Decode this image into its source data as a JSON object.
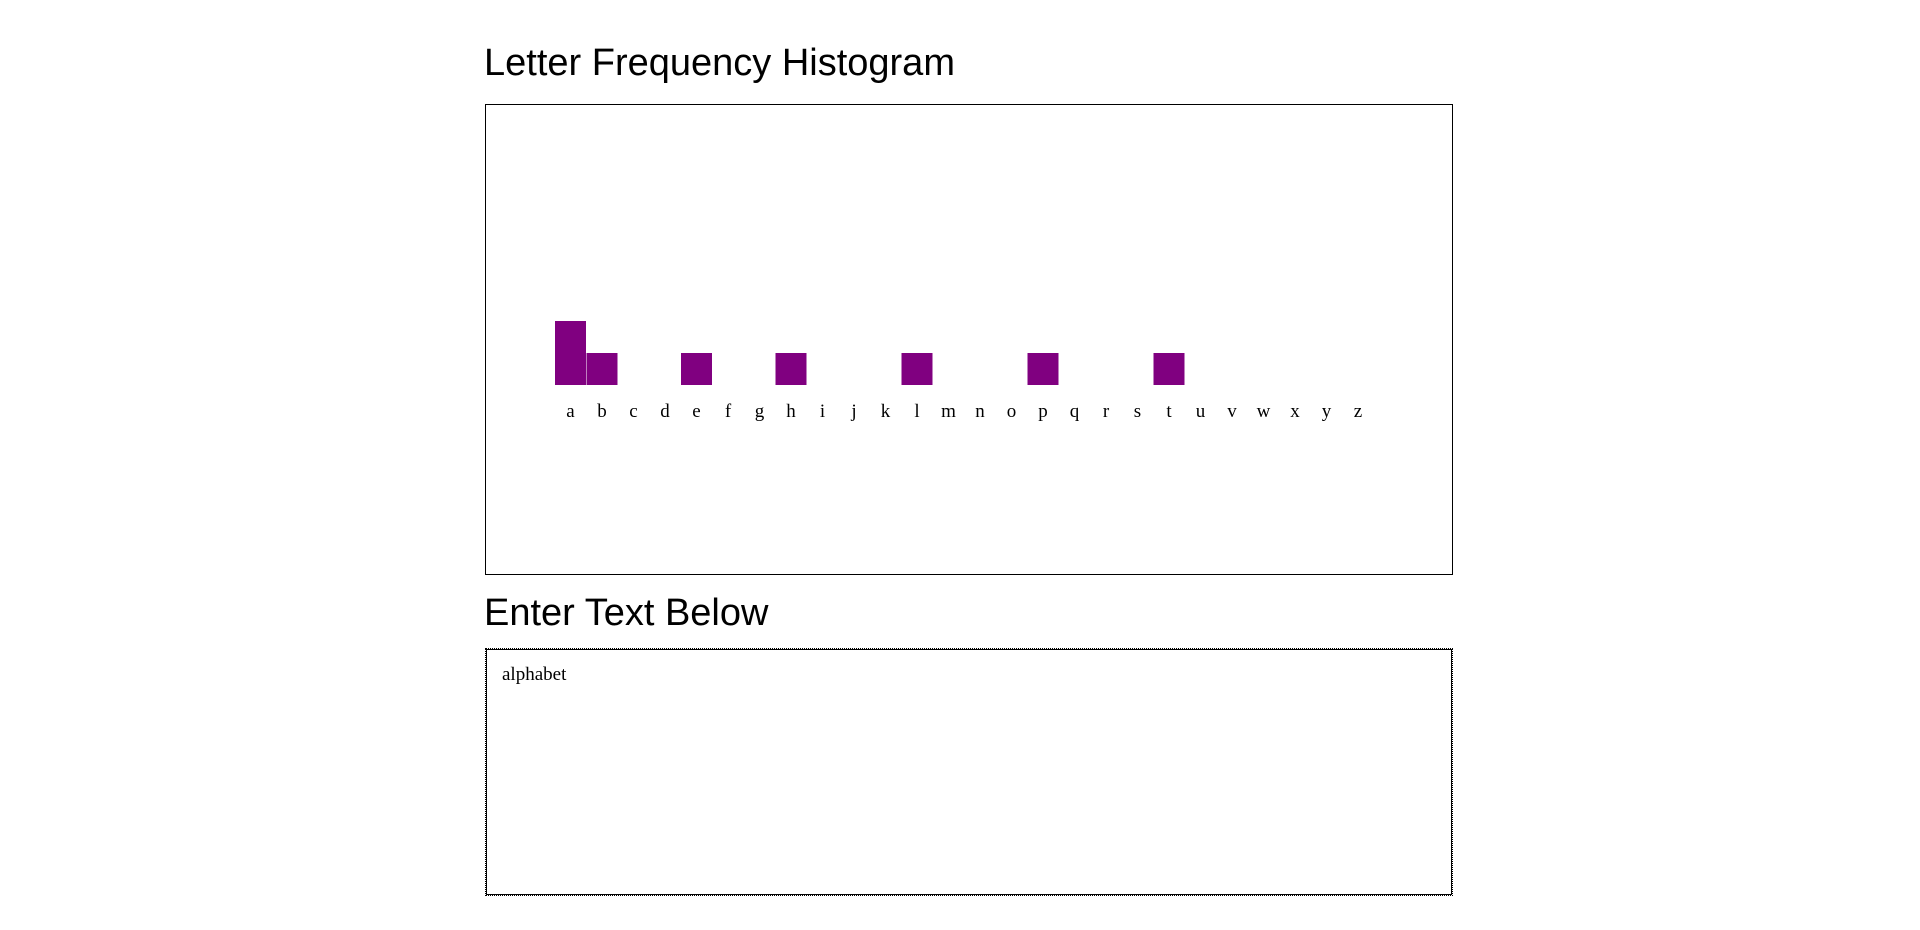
{
  "page": {
    "title": "Letter Frequency Histogram",
    "input_heading": "Enter Text Below"
  },
  "input": {
    "value": "alphabet"
  },
  "colors": {
    "bar": "#800080"
  },
  "chart_data": {
    "type": "bar",
    "title": "Letter Frequency Histogram",
    "categories": [
      "a",
      "b",
      "c",
      "d",
      "e",
      "f",
      "g",
      "h",
      "i",
      "j",
      "k",
      "l",
      "m",
      "n",
      "o",
      "p",
      "q",
      "r",
      "s",
      "t",
      "u",
      "v",
      "w",
      "x",
      "y",
      "z"
    ],
    "values": [
      2,
      1,
      0,
      0,
      1,
      0,
      0,
      1,
      0,
      0,
      0,
      1,
      0,
      0,
      0,
      1,
      0,
      0,
      0,
      1,
      0,
      0,
      0,
      0,
      0,
      0
    ],
    "xlabel": "",
    "ylabel": "",
    "grid": false,
    "legend": "none"
  }
}
